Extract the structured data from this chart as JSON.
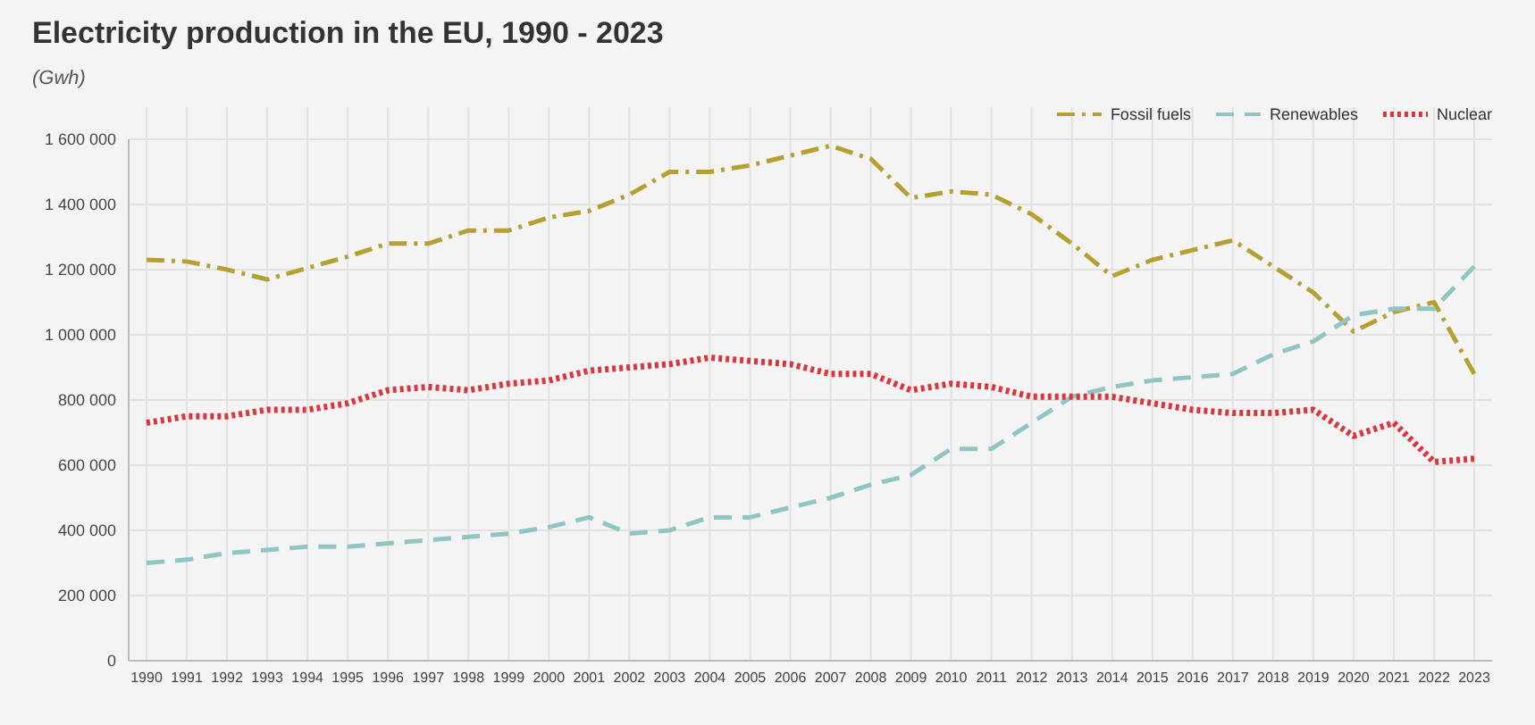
{
  "chart_data": {
    "type": "line",
    "title": "Electricity production in the EU, 1990 - 2023",
    "ylabel": "(Gwh)",
    "categories": [
      "1990",
      "1991",
      "1992",
      "1993",
      "1994",
      "1995",
      "1996",
      "1997",
      "1998",
      "1999",
      "2000",
      "2001",
      "2002",
      "2003",
      "2004",
      "2005",
      "2006",
      "2007",
      "2008",
      "2009",
      "2010",
      "2011",
      "2012",
      "2013",
      "2014",
      "2015",
      "2016",
      "2017",
      "2018",
      "2019",
      "2020",
      "2021",
      "2022",
      "2023"
    ],
    "series": [
      {
        "name": "Fossil fuels",
        "color": "#b5a032",
        "line_style": "dashdot",
        "values": [
          1230000,
          1225000,
          1200000,
          1170000,
          1205000,
          1240000,
          1280000,
          1280000,
          1320000,
          1320000,
          1360000,
          1380000,
          1430000,
          1500000,
          1500000,
          1520000,
          1550000,
          1580000,
          1540000,
          1420000,
          1440000,
          1430000,
          1370000,
          1280000,
          1180000,
          1230000,
          1260000,
          1290000,
          1210000,
          1130000,
          1010000,
          1070000,
          1100000,
          880000
        ]
      },
      {
        "name": "Renewables",
        "color": "#8fc6c4",
        "line_style": "dashed",
        "values": [
          300000,
          310000,
          330000,
          340000,
          350000,
          350000,
          360000,
          370000,
          380000,
          390000,
          410000,
          440000,
          390000,
          400000,
          440000,
          440000,
          470000,
          500000,
          540000,
          570000,
          650000,
          650000,
          730000,
          810000,
          840000,
          860000,
          870000,
          880000,
          940000,
          980000,
          1060000,
          1080000,
          1080000,
          1210000
        ]
      },
      {
        "name": "Nuclear",
        "color": "#d9363e",
        "line_style": "dotted",
        "values": [
          730000,
          750000,
          750000,
          770000,
          770000,
          790000,
          830000,
          840000,
          830000,
          850000,
          860000,
          890000,
          900000,
          910000,
          930000,
          920000,
          910000,
          880000,
          880000,
          830000,
          850000,
          840000,
          810000,
          810000,
          810000,
          790000,
          770000,
          760000,
          760000,
          770000,
          690000,
          730000,
          610000,
          620000
        ]
      }
    ],
    "ylim": [
      0,
      1600000
    ],
    "yticks": [
      0,
      {
        "value": 200000,
        "label": "200 000"
      },
      {
        "value": 400000,
        "label": "400 000"
      },
      {
        "value": 600000,
        "label": "600 000"
      },
      {
        "value": 800000,
        "label": "800 000"
      },
      {
        "value": 1000000,
        "label": "1 000 000"
      },
      {
        "value": 1200000,
        "label": "1 200 000"
      },
      {
        "value": 1400000,
        "label": "1 400 000"
      },
      {
        "value": 1600000,
        "label": "1 600 000"
      }
    ],
    "grid": true,
    "legend": "top right"
  }
}
